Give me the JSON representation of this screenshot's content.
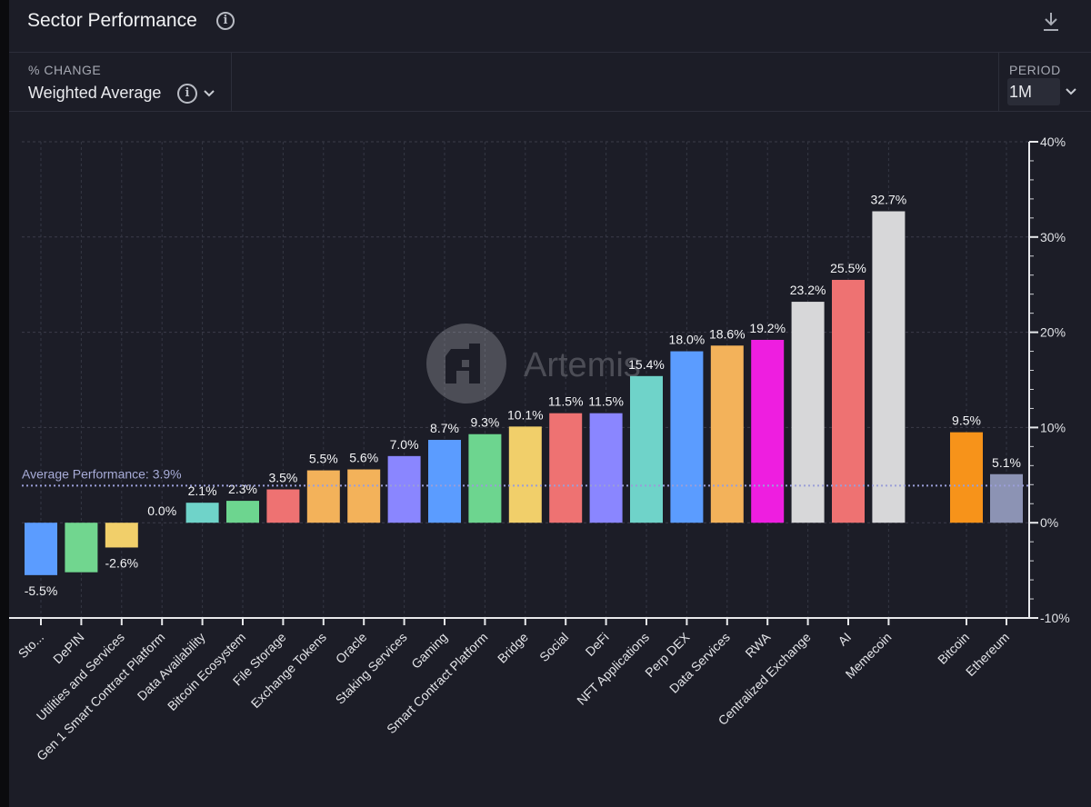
{
  "header": {
    "title": "Sector Performance"
  },
  "controls": {
    "metric_label": "% CHANGE",
    "metric_value": "Weighted Average",
    "period_label": "PERIOD",
    "period_value": "1M"
  },
  "watermark": "Artemis",
  "colors": {
    "background": "#1c1d27",
    "average_line": "#9a9ed8",
    "bitcoin": "#f7931a",
    "ethereum": "#8c93b4"
  },
  "chart_data": {
    "type": "bar",
    "yticks": [
      "40%",
      "30%",
      "20%",
      "10%",
      "0%",
      "-10%"
    ],
    "ylim": [
      -10,
      40
    ],
    "y_axis_side": "right",
    "grid": true,
    "average": {
      "label": "Average Performance: 3.9%",
      "value": 3.9
    },
    "bars": [
      {
        "category": "Sto...",
        "value": -5.5,
        "label": "-5.5%",
        "color": "#5b9cff"
      },
      {
        "category": "DePIN",
        "value": -5.2,
        "label": "",
        "color": "#71d68f"
      },
      {
        "category": "Utilities and Services",
        "value": -2.6,
        "label": "-2.6%",
        "color": "#f1cf6a"
      },
      {
        "category": "Gen 1 Smart Contract Platform",
        "value": 0.0,
        "label": "0.0%",
        "color": "#f1cf6a"
      },
      {
        "category": "Data Availability",
        "value": 2.1,
        "label": "2.1%",
        "color": "#6fd3c9"
      },
      {
        "category": "Bitcoin Ecosystem",
        "value": 2.3,
        "label": "2.3%",
        "color": "#6dd58f"
      },
      {
        "category": "File Storage",
        "value": 3.5,
        "label": "3.5%",
        "color": "#ee7272"
      },
      {
        "category": "Exchange Tokens",
        "value": 5.5,
        "label": "5.5%",
        "color": "#f3b25a"
      },
      {
        "category": "Oracle",
        "value": 5.6,
        "label": "5.6%",
        "color": "#f3b25a"
      },
      {
        "category": "Staking Services",
        "value": 7.0,
        "label": "7.0%",
        "color": "#8a86ff"
      },
      {
        "category": "Gaming",
        "value": 8.7,
        "label": "8.7%",
        "color": "#5b9cff"
      },
      {
        "category": "Smart Contract Platform",
        "value": 9.3,
        "label": "9.3%",
        "color": "#6dd58f"
      },
      {
        "category": "Bridge",
        "value": 10.1,
        "label": "10.1%",
        "color": "#f1cf6a"
      },
      {
        "category": "Social",
        "value": 11.5,
        "label": "11.5%",
        "color": "#ee7272"
      },
      {
        "category": "DeFi",
        "value": 11.5,
        "label": "11.5%",
        "color": "#8a86ff"
      },
      {
        "category": "NFT Applications",
        "value": 15.4,
        "label": "15.4%",
        "color": "#6fd3c9"
      },
      {
        "category": "Perp DEX",
        "value": 18.0,
        "label": "18.0%",
        "color": "#5b9cff"
      },
      {
        "category": "Data Services",
        "value": 18.6,
        "label": "18.6%",
        "color": "#f3b25a"
      },
      {
        "category": "RWA",
        "value": 19.2,
        "label": "19.2%",
        "color": "#ee1ee0"
      },
      {
        "category": "Centralized Exchange",
        "value": 23.2,
        "label": "23.2%",
        "color": "#d7d7d9"
      },
      {
        "category": "AI",
        "value": 25.5,
        "label": "25.5%",
        "color": "#ee7272"
      },
      {
        "category": "Memecoin",
        "value": 32.7,
        "label": "32.7%",
        "color": "#d7d7d9"
      },
      {
        "category": "Bitcoin",
        "value": 9.5,
        "label": "9.5%",
        "color": "#f7931a",
        "group": "benchmark"
      },
      {
        "category": "Ethereum",
        "value": 5.1,
        "label": "5.1%",
        "color": "#8c93b4",
        "group": "benchmark"
      }
    ]
  }
}
